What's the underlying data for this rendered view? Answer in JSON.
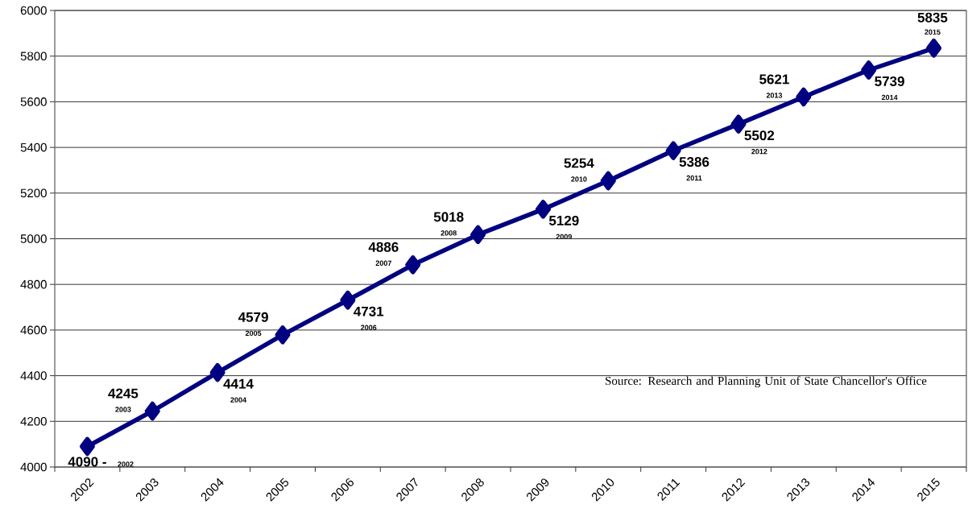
{
  "chart_data": {
    "type": "line",
    "categories": [
      "2002",
      "2003",
      "2004",
      "2005",
      "2006",
      "2007",
      "2008",
      "2009",
      "2010",
      "2011",
      "2012",
      "2013",
      "2014",
      "2015"
    ],
    "values": [
      4090,
      4245,
      4414,
      4579,
      4731,
      4886,
      5018,
      5129,
      5254,
      5386,
      5502,
      5621,
      5739,
      5835
    ],
    "value_labels": [
      "4090 -",
      "4245",
      "4414",
      "4579",
      "4731",
      "4886",
      "5018",
      "5129",
      "5254",
      "5386",
      "5502",
      "5621",
      "5739",
      "5835"
    ],
    "color": "#000080",
    "marker": "diamond",
    "line_style": "solid",
    "ylim": [
      4000,
      6000
    ],
    "yticks": [
      4000,
      4200,
      4400,
      4600,
      4800,
      5000,
      5200,
      5400,
      5600,
      5800,
      6000
    ],
    "grid": "y",
    "annotations": [
      "2002",
      "2003",
      "2004",
      "2005",
      "2006",
      "2007",
      "2008",
      "2009",
      "2010",
      "2011",
      "2012",
      "2013",
      "2014",
      "2015",
      "Source:  Research and Planning Unit of State Chancellor's Office"
    ]
  }
}
